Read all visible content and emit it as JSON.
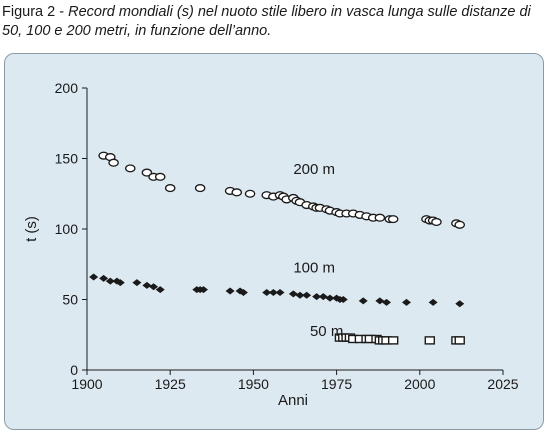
{
  "caption": {
    "lead": "Figura 2 - ",
    "text": "Record mondiali (s) nel nuoto stile libero in vasca lunga sulle distanze di 50, 100 e 200 metri, in funzione dell’anno."
  },
  "chart_data": {
    "type": "scatter",
    "xlabel": "Anni",
    "ylabel": "t (s)",
    "xlim": [
      1900,
      2025
    ],
    "ylim": [
      0,
      200
    ],
    "xticks": [
      1900,
      1925,
      1950,
      1975,
      2000,
      2025
    ],
    "yticks": [
      0,
      50,
      100,
      150,
      200
    ],
    "grid": false,
    "series": [
      {
        "name": "200 m",
        "marker": "ellipse",
        "label_at": [
          1962,
          139
        ],
        "points": [
          [
            1905,
            152
          ],
          [
            1907,
            151
          ],
          [
            1908,
            147
          ],
          [
            1913,
            143
          ],
          [
            1918,
            140
          ],
          [
            1920,
            137
          ],
          [
            1922,
            137
          ],
          [
            1925,
            129
          ],
          [
            1934,
            129
          ],
          [
            1943,
            127
          ],
          [
            1945,
            126
          ],
          [
            1949,
            125
          ],
          [
            1954,
            124
          ],
          [
            1956,
            123
          ],
          [
            1958,
            124
          ],
          [
            1959,
            123
          ],
          [
            1960,
            121
          ],
          [
            1962,
            122
          ],
          [
            1963,
            120
          ],
          [
            1964,
            119
          ],
          [
            1966,
            117
          ],
          [
            1968,
            116
          ],
          [
            1969,
            115
          ],
          [
            1970,
            115
          ],
          [
            1972,
            114
          ],
          [
            1973,
            113
          ],
          [
            1975,
            112
          ],
          [
            1976,
            111
          ],
          [
            1978,
            111
          ],
          [
            1980,
            111
          ],
          [
            1982,
            110
          ],
          [
            1984,
            109
          ],
          [
            1986,
            108
          ],
          [
            1988,
            108
          ],
          [
            1991,
            107
          ],
          [
            1992,
            107
          ],
          [
            2002,
            107
          ],
          [
            2003,
            106
          ],
          [
            2004,
            106
          ],
          [
            2005,
            105
          ],
          [
            2011,
            104
          ],
          [
            2012,
            103
          ]
        ]
      },
      {
        "name": "100 m",
        "marker": "diamond",
        "label_at": [
          1962,
          69
        ],
        "points": [
          [
            1902,
            66
          ],
          [
            1905,
            65
          ],
          [
            1907,
            63
          ],
          [
            1909,
            63
          ],
          [
            1910,
            62
          ],
          [
            1915,
            62
          ],
          [
            1918,
            60
          ],
          [
            1920,
            59
          ],
          [
            1922,
            57
          ],
          [
            1933,
            57
          ],
          [
            1934,
            57
          ],
          [
            1935,
            57
          ],
          [
            1943,
            56
          ],
          [
            1946,
            56
          ],
          [
            1947,
            55
          ],
          [
            1954,
            55
          ],
          [
            1956,
            55
          ],
          [
            1958,
            55
          ],
          [
            1962,
            54
          ],
          [
            1964,
            53
          ],
          [
            1966,
            53
          ],
          [
            1969,
            52
          ],
          [
            1971,
            52
          ],
          [
            1973,
            51
          ],
          [
            1975,
            51
          ],
          [
            1976,
            50
          ],
          [
            1977,
            50
          ],
          [
            1983,
            49
          ],
          [
            1988,
            49
          ],
          [
            1990,
            48
          ],
          [
            1996,
            48
          ],
          [
            2004,
            48
          ],
          [
            2012,
            47
          ]
        ]
      },
      {
        "name": "50 m",
        "marker": "square",
        "label_at": [
          1967,
          24
        ],
        "points": [
          [
            1976,
            23
          ],
          [
            1977,
            23
          ],
          [
            1978,
            23
          ],
          [
            1979,
            23
          ],
          [
            1980,
            22
          ],
          [
            1982,
            22
          ],
          [
            1984,
            22
          ],
          [
            1985,
            22
          ],
          [
            1987,
            22
          ],
          [
            1988,
            21
          ],
          [
            1989,
            21
          ],
          [
            1990,
            21
          ],
          [
            1992,
            21
          ],
          [
            2003,
            21
          ],
          [
            2011,
            21
          ],
          [
            2012,
            21
          ]
        ]
      }
    ]
  }
}
